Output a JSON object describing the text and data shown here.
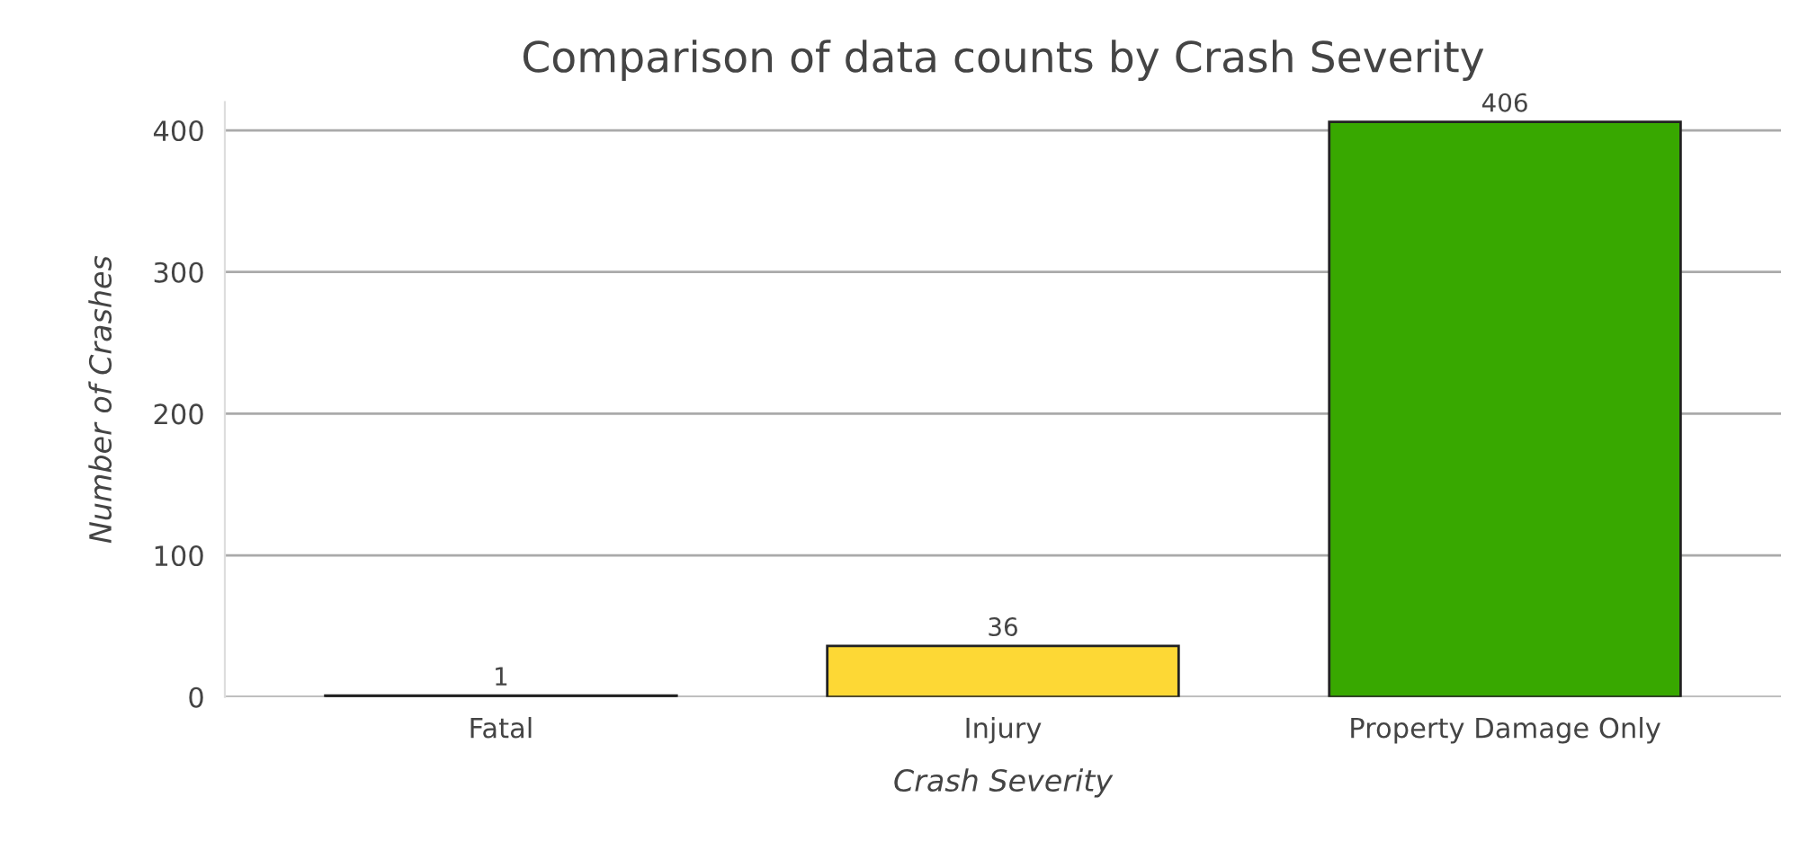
{
  "chart_data": {
    "type": "bar",
    "title": "Comparison of data counts by Crash Severity",
    "xlabel": "Crash Severity",
    "ylabel": "Number of Crashes",
    "categories": [
      "Fatal",
      "Injury",
      "Property Damage Only"
    ],
    "values": [
      1,
      36,
      406
    ],
    "colors": [
      "#111111",
      "#fdd835",
      "#38a800"
    ],
    "ylim": [
      0,
      420
    ],
    "yticks": [
      0,
      100,
      200,
      300,
      400
    ],
    "grid": "y",
    "data_labels": true
  }
}
